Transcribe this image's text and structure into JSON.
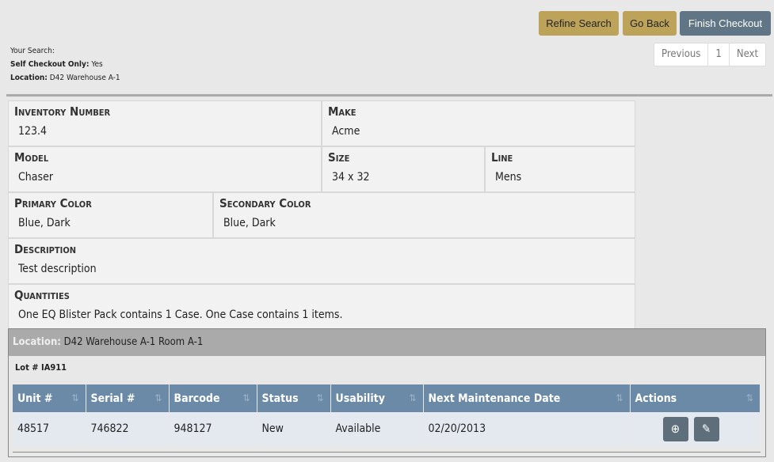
{
  "toolbar": {
    "refine": "Refine Search",
    "back": "Go Back",
    "finish": "Finish Checkout"
  },
  "search": {
    "heading": "Your Search:",
    "self_label": "Self Checkout Only:",
    "self_value": "Yes",
    "loc_label": "Location:",
    "loc_value": "D42 Warehouse A-1"
  },
  "pager": {
    "prev": "Previous",
    "page": "1",
    "next": "Next"
  },
  "details": {
    "inventory_label": "Inventory Number",
    "inventory": "123.4",
    "make_label": "Make",
    "make": "Acme",
    "model_label": "Model",
    "model": "Chaser",
    "size_label": "Size",
    "size": "34 x 32",
    "line_label": "Line",
    "line": "Mens",
    "primary_label": "Primary Color",
    "primary": "Blue, Dark",
    "secondary_label": "Secondary Color",
    "secondary": "Blue, Dark",
    "description_label": "Description",
    "description": "Test description",
    "quantities_label": "Quantities",
    "quantities": "One EQ Blister Pack contains 1 Case. One Case contains 1 items."
  },
  "location": {
    "label": "Location:",
    "value": "D42 Warehouse A-1 Room A-1",
    "lot": "Lot # IA911"
  },
  "table": {
    "headers": [
      "Unit #",
      "Serial #",
      "Barcode",
      "Status",
      "Usability",
      "Next Maintenance Date",
      "Actions"
    ],
    "rows": [
      [
        "48517",
        "746822",
        "948127",
        "New",
        "Available",
        "02/20/2013"
      ]
    ]
  },
  "colors": {
    "gold": "#bda35a",
    "slate": "#607585",
    "header": "#6a8aa8"
  }
}
